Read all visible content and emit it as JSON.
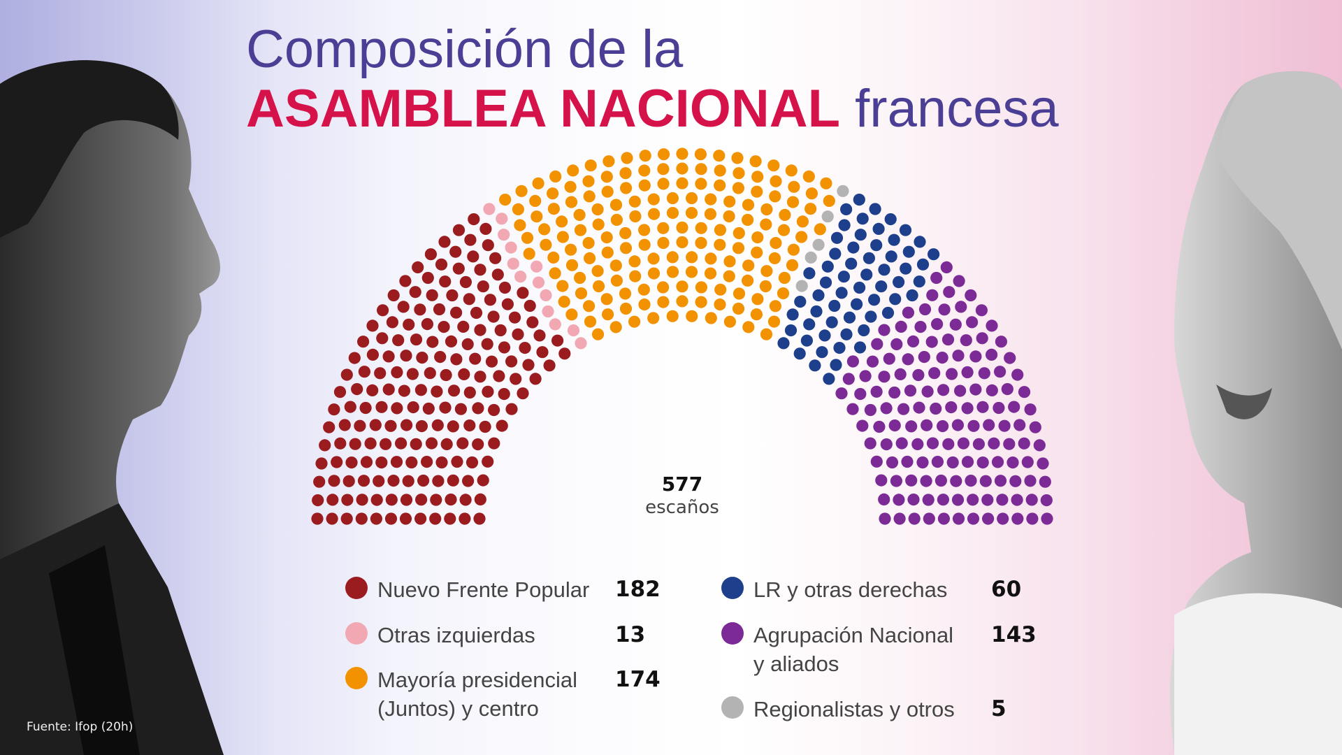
{
  "title": {
    "line1": "Composición de la",
    "emphasis": "ASAMBLEA NACIONAL",
    "rest": " francesa"
  },
  "total": {
    "number": "577",
    "label": "escaños"
  },
  "source": "Fuente: Ifop (20h)",
  "chart_data": {
    "type": "parliament",
    "total_seats": 577,
    "series": [
      {
        "name": "Nuevo Frente Popular",
        "value": 182,
        "color": "#9b1c1f"
      },
      {
        "name": "Otras izquierdas",
        "value": 13,
        "color": "#f2a8b2"
      },
      {
        "name": "Mayoría presidencial (Juntos) y centro",
        "value": 174,
        "color": "#f39200"
      },
      {
        "name": "Regionalistas y otros",
        "value": 5,
        "color": "#b3b3b3"
      },
      {
        "name": "LR y otras derechas",
        "value": 60,
        "color": "#1d3f8c"
      },
      {
        "name": "Agrupación Nacional y aliados",
        "value": 143,
        "color": "#7b2a96"
      }
    ]
  },
  "legend": {
    "left": [
      {
        "name": "Nuevo Frente Popular",
        "value": "182",
        "color": "#9b1c1f"
      },
      {
        "name": "Otras izquierdas",
        "value": "13",
        "color": "#f2a8b2"
      },
      {
        "name": "Mayoría presidencial (Juntos) y centro",
        "value": "174",
        "color": "#f39200"
      }
    ],
    "right": [
      {
        "name": "LR y otras derechas",
        "value": "60",
        "color": "#1d3f8c"
      },
      {
        "name": "Agrupación Nacional y aliados",
        "value": "143",
        "color": "#7b2a96"
      },
      {
        "name": "Regionalistas y otros",
        "value": "5",
        "color": "#b3b3b3"
      }
    ]
  }
}
